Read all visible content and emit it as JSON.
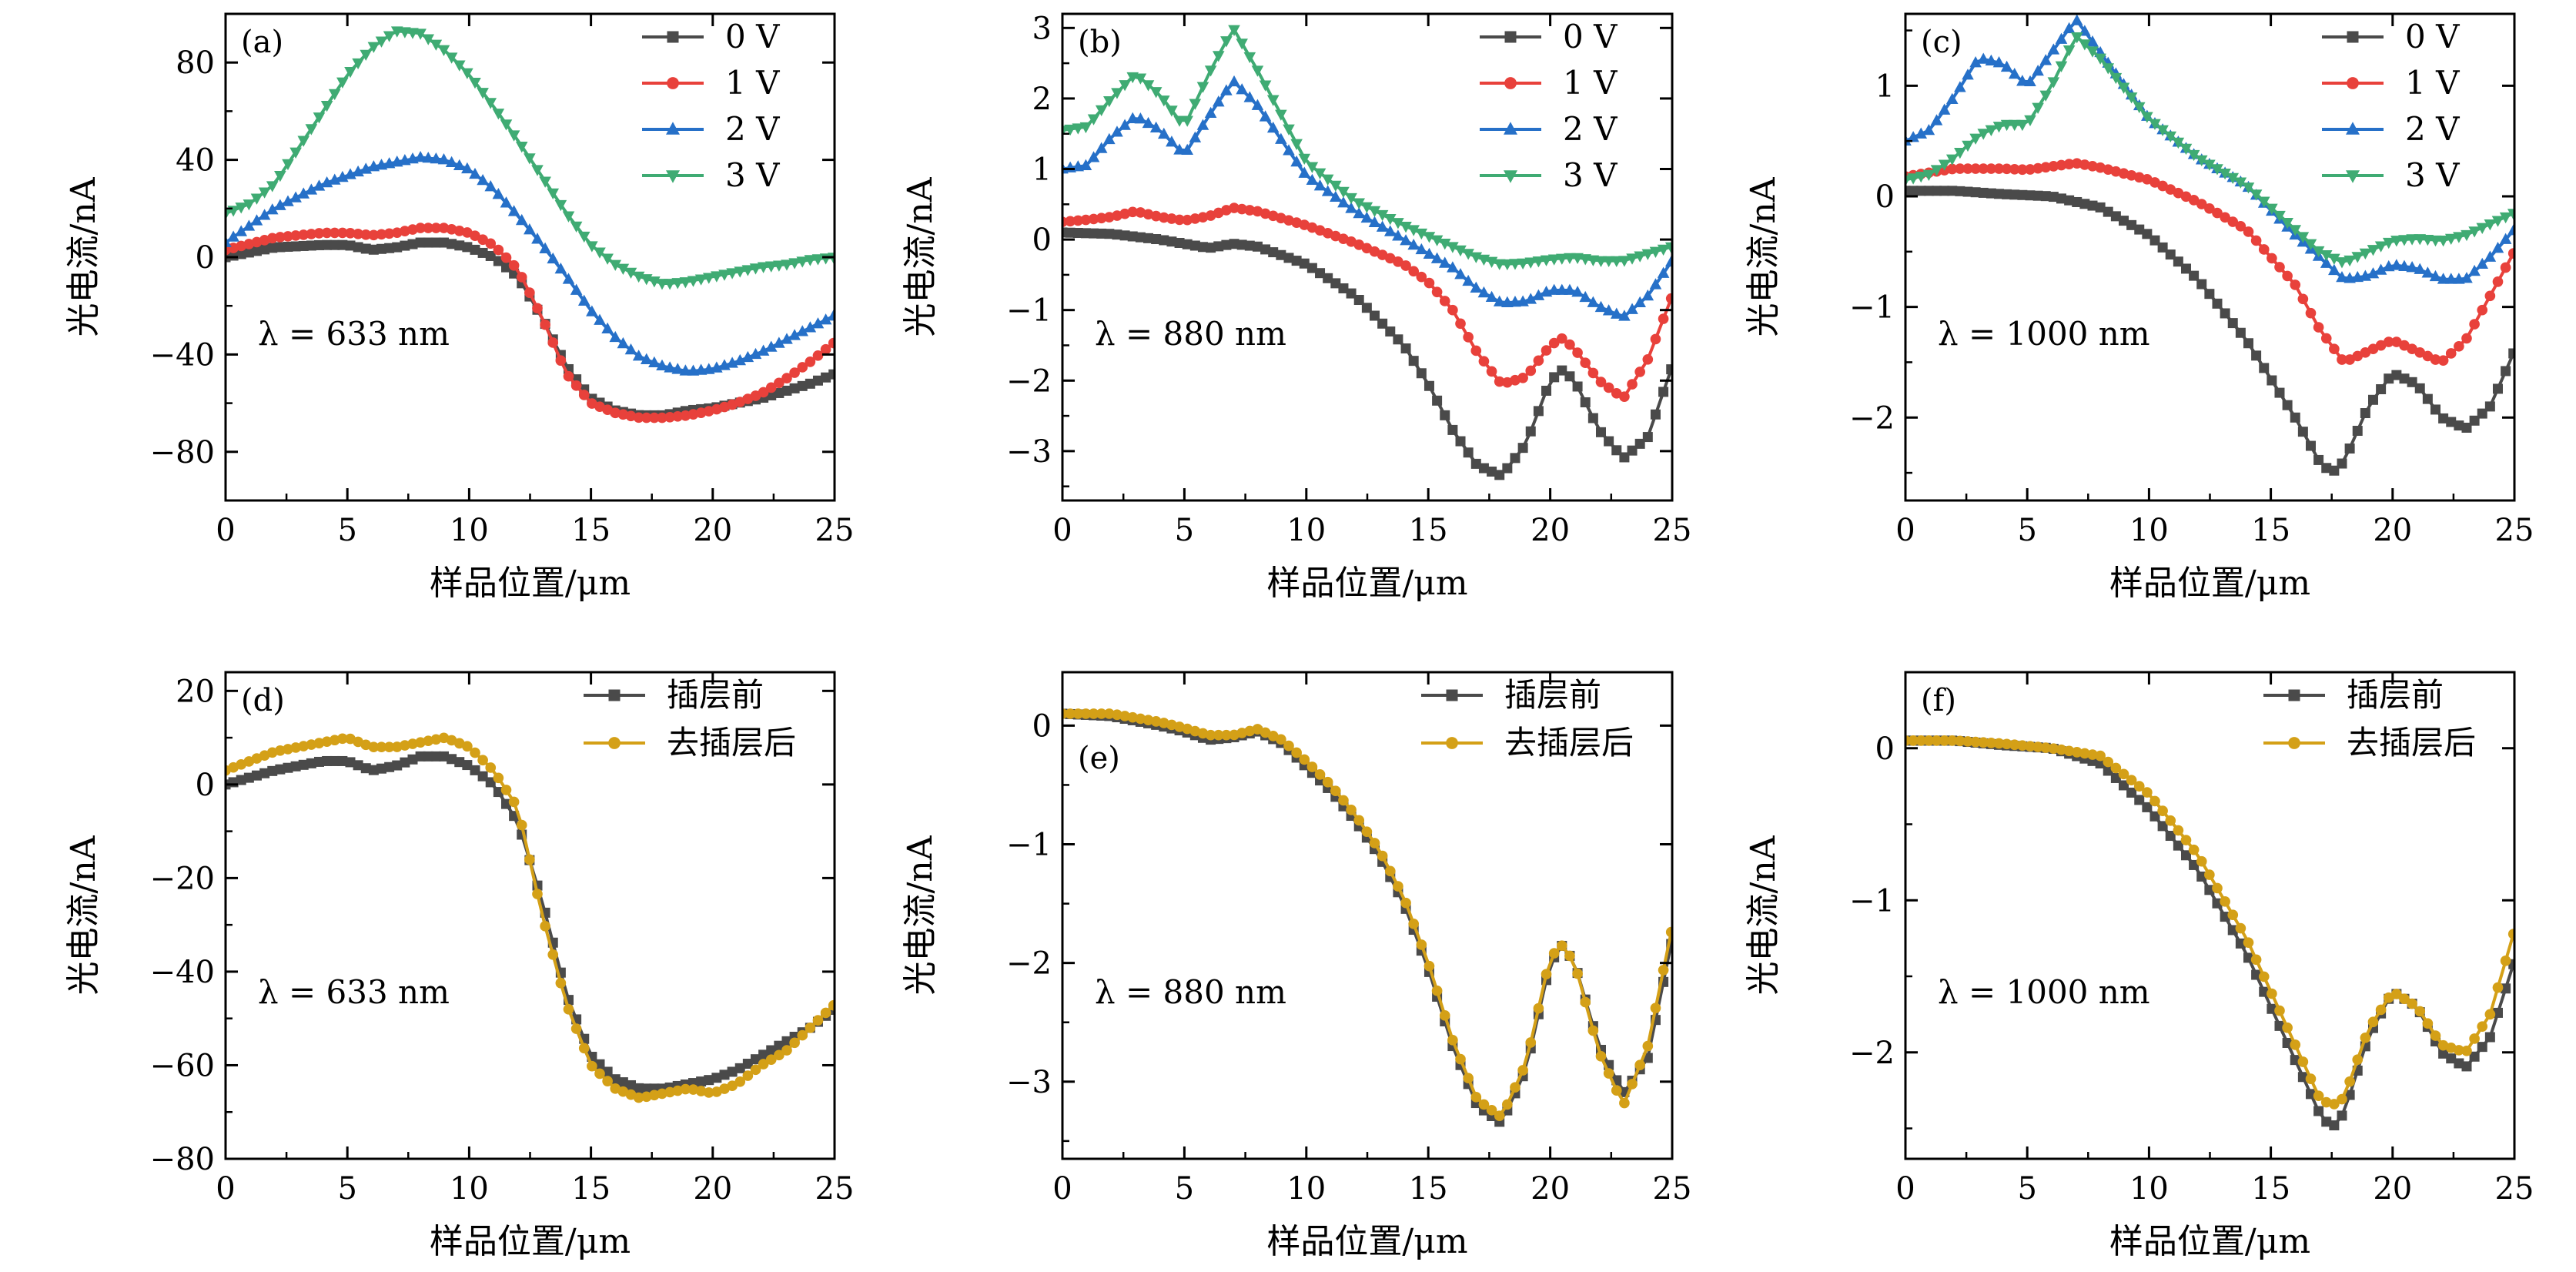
{
  "chart_data": [
    {
      "panel": "(a)",
      "type": "line",
      "annotation": "λ = 633 nm",
      "xlabel": "样品位置/μm",
      "ylabel": "光电流/nA",
      "xlim": [
        0,
        25
      ],
      "ylim": [
        -100,
        100
      ],
      "xticks": [
        0,
        5,
        10,
        15,
        20,
        25
      ],
      "yticks": [
        -80,
        -40,
        0,
        40,
        80
      ],
      "legend": "top-right",
      "series": [
        {
          "name": "0 V",
          "color": "#4a4a4a",
          "marker": "square",
          "x": [
            0,
            2,
            4,
            5,
            6,
            7,
            8,
            9,
            10,
            11,
            12,
            13,
            14,
            15,
            16,
            17,
            18,
            19,
            20,
            21,
            22,
            23,
            24,
            25
          ],
          "y": [
            0,
            4,
            5,
            5,
            3,
            4,
            6,
            6,
            4,
            0,
            -8,
            -25,
            -45,
            -58,
            -63,
            -65,
            -65,
            -63,
            -62,
            -60,
            -58,
            -55,
            -52,
            -48
          ]
        },
        {
          "name": "1 V",
          "color": "#e8413b",
          "marker": "circle",
          "x": [
            0,
            2,
            4,
            5,
            6,
            7,
            8,
            9,
            10,
            11,
            12,
            13,
            14,
            15,
            16,
            17,
            18,
            19,
            20,
            21,
            22,
            23,
            24,
            25
          ],
          "y": [
            3,
            8,
            10,
            10,
            9,
            10,
            12,
            12,
            10,
            5,
            -5,
            -25,
            -48,
            -60,
            -64,
            -66,
            -66,
            -65,
            -63,
            -60,
            -56,
            -50,
            -43,
            -35
          ]
        },
        {
          "name": "2 V",
          "color": "#2670c8",
          "marker": "triangle-up",
          "x": [
            0,
            2,
            4,
            6,
            8,
            9,
            10,
            11,
            12,
            13,
            14,
            15,
            16,
            17,
            18,
            19,
            20,
            21,
            22,
            23,
            24,
            25
          ],
          "y": [
            6,
            20,
            30,
            37,
            41,
            40,
            36,
            28,
            17,
            5,
            -8,
            -22,
            -33,
            -41,
            -45,
            -47,
            -46,
            -43,
            -39,
            -34,
            -29,
            -24
          ]
        },
        {
          "name": "3 V",
          "color": "#3fab73",
          "marker": "triangle-down",
          "x": [
            0,
            1,
            2,
            3,
            4,
            5,
            6,
            7,
            8,
            9,
            10,
            11,
            12,
            13,
            14,
            15,
            16,
            17,
            18,
            19,
            20,
            21,
            22,
            23,
            24,
            25
          ],
          "y": [
            18,
            22,
            30,
            45,
            60,
            75,
            86,
            93,
            92,
            85,
            75,
            62,
            48,
            33,
            18,
            5,
            -3,
            -8,
            -11,
            -10,
            -8,
            -6,
            -4,
            -3,
            -1,
            0
          ]
        }
      ]
    },
    {
      "panel": "(b)",
      "type": "line",
      "annotation": "λ = 880 nm",
      "xlabel": "样品位置/μm",
      "ylabel": "光电流/nA",
      "xlim": [
        0,
        25
      ],
      "ylim": [
        -3.7,
        3.2
      ],
      "xticks": [
        0,
        5,
        10,
        15,
        20,
        25
      ],
      "yticks": [
        -3,
        -2,
        -1,
        0,
        1,
        2,
        3
      ],
      "legend": "top-right",
      "series": [
        {
          "name": "0 V",
          "color": "#4a4a4a",
          "marker": "square",
          "x": [
            0,
            2,
            4,
            6,
            7,
            8,
            10,
            12,
            14,
            15,
            16,
            17,
            18,
            19,
            20,
            20.5,
            21,
            22,
            23,
            24,
            25
          ],
          "y": [
            0.1,
            0.08,
            0.0,
            -0.12,
            -0.06,
            -0.1,
            -0.35,
            -0.8,
            -1.5,
            -2.05,
            -2.7,
            -3.2,
            -3.35,
            -2.9,
            -2.0,
            -1.85,
            -2.0,
            -2.7,
            -3.1,
            -2.8,
            -1.8
          ]
        },
        {
          "name": "1 V",
          "color": "#e8413b",
          "marker": "circle",
          "x": [
            0,
            1,
            2,
            3,
            4,
            5,
            6,
            7,
            8,
            10,
            12,
            14,
            15,
            16,
            17,
            18,
            19,
            20,
            20.5,
            21,
            22,
            23,
            24,
            25
          ],
          "y": [
            0.25,
            0.28,
            0.32,
            0.4,
            0.32,
            0.27,
            0.33,
            0.45,
            0.4,
            0.2,
            -0.05,
            -0.35,
            -0.6,
            -1.0,
            -1.6,
            -2.05,
            -1.95,
            -1.5,
            -1.4,
            -1.55,
            -2.0,
            -2.25,
            -1.7,
            -0.8
          ]
        },
        {
          "name": "2 V",
          "color": "#2670c8",
          "marker": "triangle-up",
          "x": [
            0,
            1,
            2,
            3,
            4,
            5,
            6,
            7,
            8,
            10,
            12,
            14,
            16,
            17,
            18,
            19,
            20,
            21,
            22,
            23,
            24,
            25
          ],
          "y": [
            1.0,
            1.05,
            1.45,
            1.75,
            1.55,
            1.2,
            1.75,
            2.25,
            1.9,
            0.9,
            0.4,
            0.0,
            -0.4,
            -0.7,
            -0.9,
            -0.88,
            -0.72,
            -0.72,
            -0.95,
            -1.1,
            -0.8,
            -0.3
          ]
        },
        {
          "name": "3 V",
          "color": "#3fab73",
          "marker": "triangle-down",
          "x": [
            0,
            1,
            2,
            3,
            4,
            5,
            6,
            7,
            8,
            10,
            12,
            14,
            16,
            17,
            18,
            19,
            20,
            21,
            22,
            23,
            24,
            25
          ],
          "y": [
            1.55,
            1.6,
            2.0,
            2.35,
            2.05,
            1.6,
            2.35,
            3.0,
            2.4,
            1.1,
            0.55,
            0.2,
            -0.1,
            -0.25,
            -0.35,
            -0.33,
            -0.28,
            -0.25,
            -0.3,
            -0.3,
            -0.2,
            -0.1
          ]
        }
      ]
    },
    {
      "panel": "(c)",
      "type": "line",
      "annotation": "λ = 1000 nm",
      "xlabel": "样品位置/μm",
      "ylabel": "光电流/nA",
      "xlim": [
        0,
        25
      ],
      "ylim": [
        -2.75,
        1.65
      ],
      "xticks": [
        0,
        5,
        10,
        15,
        20,
        25
      ],
      "yticks": [
        -2,
        -1,
        0,
        1
      ],
      "legend": "top-right",
      "series": [
        {
          "name": "0 V",
          "color": "#4a4a4a",
          "marker": "square",
          "x": [
            0,
            2,
            4,
            6,
            8,
            10,
            12,
            14,
            15,
            16,
            17,
            17.5,
            18,
            19,
            20,
            21,
            22,
            23,
            24,
            25
          ],
          "y": [
            0.05,
            0.05,
            0.02,
            0.0,
            -0.1,
            -0.35,
            -0.75,
            -1.3,
            -1.65,
            -2.0,
            -2.4,
            -2.5,
            -2.4,
            -1.9,
            -1.6,
            -1.7,
            -2.0,
            -2.1,
            -1.9,
            -1.4
          ]
        },
        {
          "name": "1 V",
          "color": "#e8413b",
          "marker": "circle",
          "x": [
            0,
            2,
            4,
            5,
            6,
            7,
            8,
            10,
            12,
            14,
            16,
            17,
            18,
            19,
            20,
            21,
            22,
            23,
            24,
            25
          ],
          "y": [
            0.18,
            0.25,
            0.25,
            0.24,
            0.27,
            0.3,
            0.26,
            0.15,
            -0.05,
            -0.3,
            -0.8,
            -1.2,
            -1.5,
            -1.4,
            -1.3,
            -1.4,
            -1.5,
            -1.3,
            -0.9,
            -0.5
          ]
        },
        {
          "name": "2 V",
          "color": "#2670c8",
          "marker": "triangle-up",
          "x": [
            0,
            1,
            2,
            3,
            4,
            5,
            6,
            7,
            8,
            10,
            12,
            14,
            16,
            17,
            18,
            19,
            20,
            21,
            22,
            23,
            24,
            25
          ],
          "y": [
            0.5,
            0.6,
            0.9,
            1.25,
            1.2,
            1.0,
            1.3,
            1.6,
            1.3,
            0.7,
            0.35,
            0.1,
            -0.35,
            -0.55,
            -0.75,
            -0.72,
            -0.62,
            -0.65,
            -0.75,
            -0.75,
            -0.55,
            -0.3
          ]
        },
        {
          "name": "3 V",
          "color": "#3fab73",
          "marker": "triangle-down",
          "x": [
            0,
            1,
            2,
            3,
            4,
            5,
            6,
            7,
            8,
            10,
            12,
            14,
            16,
            17,
            18,
            19,
            20,
            21,
            22,
            23,
            24,
            25
          ],
          "y": [
            0.15,
            0.2,
            0.35,
            0.55,
            0.65,
            0.65,
            1.0,
            1.45,
            1.25,
            0.7,
            0.35,
            0.1,
            -0.3,
            -0.5,
            -0.6,
            -0.5,
            -0.4,
            -0.38,
            -0.4,
            -0.35,
            -0.25,
            -0.15
          ]
        }
      ]
    },
    {
      "panel": "(d)",
      "type": "line",
      "annotation": "λ = 633 nm",
      "xlabel": "样品位置/μm",
      "ylabel": "光电流/nA",
      "xlim": [
        0,
        25
      ],
      "ylim": [
        -80,
        24
      ],
      "xticks": [
        0,
        5,
        10,
        15,
        20,
        25
      ],
      "yticks": [
        -80,
        -60,
        -40,
        -20,
        0,
        20
      ],
      "legend": "top-right",
      "series": [
        {
          "name": "插层前",
          "color": "#4a4a4a",
          "marker": "square",
          "x": [
            0,
            2,
            4,
            5,
            6,
            7,
            8,
            9,
            10,
            11,
            12,
            13,
            14,
            15,
            16,
            17,
            18,
            19,
            20,
            21,
            22,
            23,
            24,
            25
          ],
          "y": [
            0,
            3,
            5,
            5,
            3,
            4,
            6,
            6,
            4,
            0,
            -8,
            -25,
            -45,
            -58,
            -63,
            -65,
            -65,
            -64,
            -63,
            -61,
            -58,
            -55,
            -52,
            -48
          ]
        },
        {
          "name": "去插层后",
          "color": "#d4a017",
          "marker": "circle",
          "x": [
            0,
            2,
            4,
            5,
            6,
            7,
            8,
            9,
            10,
            11,
            12,
            13,
            14,
            15,
            16,
            17,
            18,
            19,
            20,
            21,
            22,
            23,
            24,
            25
          ],
          "y": [
            3,
            7,
            9,
            10,
            8,
            8,
            9,
            10,
            8,
            3,
            -5,
            -28,
            -47,
            -60,
            -65,
            -67,
            -66,
            -65,
            -66,
            -64,
            -60,
            -57,
            -52,
            -47
          ]
        }
      ]
    },
    {
      "panel": "(e)",
      "type": "line",
      "annotation": "λ = 880 nm",
      "xlabel": "样品位置/μm",
      "ylabel": "光电流/nA",
      "xlim": [
        0,
        25
      ],
      "ylim": [
        -3.65,
        0.45
      ],
      "xticks": [
        0,
        5,
        10,
        15,
        20,
        25
      ],
      "yticks": [
        -3,
        -2,
        -1,
        0
      ],
      "legend": "top-right",
      "series": [
        {
          "name": "插层前",
          "color": "#4a4a4a",
          "marker": "square",
          "x": [
            0,
            2,
            4,
            5,
            6,
            7,
            8,
            9,
            10,
            11,
            12,
            13,
            14,
            15,
            16,
            17,
            18,
            19,
            20,
            20.5,
            21,
            22,
            23,
            24,
            25
          ],
          "y": [
            0.1,
            0.08,
            0.0,
            -0.05,
            -0.12,
            -0.1,
            -0.05,
            -0.15,
            -0.35,
            -0.55,
            -0.8,
            -1.1,
            -1.5,
            -2.05,
            -2.7,
            -3.2,
            -3.35,
            -2.9,
            -2.0,
            -1.85,
            -2.0,
            -2.7,
            -3.1,
            -2.8,
            -1.8
          ]
        },
        {
          "name": "去插层后",
          "color": "#d4a017",
          "marker": "circle",
          "x": [
            0,
            2,
            4,
            5,
            6,
            7,
            8,
            9,
            10,
            11,
            12,
            13,
            14,
            15,
            16,
            17,
            18,
            19,
            20,
            20.5,
            21,
            22,
            23,
            24,
            25
          ],
          "y": [
            0.1,
            0.1,
            0.03,
            -0.02,
            -0.08,
            -0.08,
            -0.03,
            -0.12,
            -0.3,
            -0.5,
            -0.75,
            -1.05,
            -1.45,
            -2.0,
            -2.65,
            -3.15,
            -3.3,
            -2.85,
            -1.95,
            -1.85,
            -2.0,
            -2.75,
            -3.2,
            -2.7,
            -1.7
          ]
        }
      ]
    },
    {
      "panel": "(f)",
      "type": "line",
      "annotation": "λ = 1000 nm",
      "xlabel": "样品位置/μm",
      "ylabel": "光电流/nA",
      "xlim": [
        0,
        25
      ],
      "ylim": [
        -2.7,
        0.5
      ],
      "xticks": [
        0,
        5,
        10,
        15,
        20,
        25
      ],
      "yticks": [
        -2,
        -1,
        0
      ],
      "legend": "top-right",
      "series": [
        {
          "name": "插层前",
          "color": "#4a4a4a",
          "marker": "square",
          "x": [
            0,
            2,
            4,
            6,
            8,
            10,
            12,
            14,
            15,
            16,
            17,
            17.5,
            18,
            19,
            20,
            21,
            22,
            23,
            24,
            25
          ],
          "y": [
            0.05,
            0.05,
            0.02,
            0.0,
            -0.1,
            -0.4,
            -0.8,
            -1.35,
            -1.7,
            -2.05,
            -2.4,
            -2.5,
            -2.4,
            -1.9,
            -1.6,
            -1.7,
            -2.0,
            -2.1,
            -1.9,
            -1.4
          ]
        },
        {
          "name": "去插层后",
          "color": "#d4a017",
          "marker": "circle",
          "x": [
            0,
            2,
            4,
            6,
            8,
            10,
            12,
            14,
            15,
            16,
            17,
            17.5,
            18,
            19,
            20,
            21,
            22,
            23,
            24,
            25
          ],
          "y": [
            0.05,
            0.05,
            0.03,
            0.0,
            -0.05,
            -0.3,
            -0.7,
            -1.25,
            -1.6,
            -1.95,
            -2.3,
            -2.35,
            -2.3,
            -1.85,
            -1.6,
            -1.7,
            -1.95,
            -2.0,
            -1.75,
            -1.2
          ]
        }
      ]
    }
  ]
}
